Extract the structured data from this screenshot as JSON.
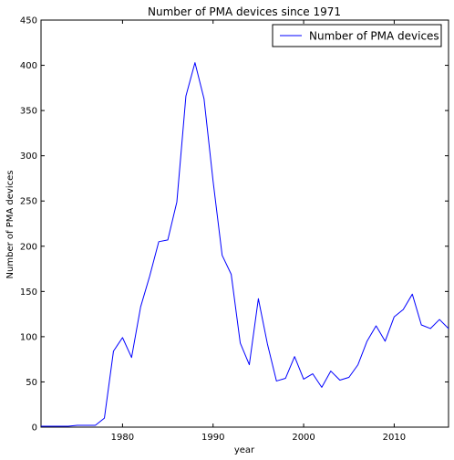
{
  "chart_data": {
    "type": "line",
    "title": "Number of PMA devices since 1971",
    "xlabel": "year",
    "ylabel": "Number of PMA devices",
    "xlim": [
      1971,
      2016
    ],
    "ylim": [
      0,
      450
    ],
    "xticks": [
      1980,
      1990,
      2000,
      2010
    ],
    "yticks": [
      0,
      50,
      100,
      150,
      200,
      250,
      300,
      350,
      400,
      450
    ],
    "grid": false,
    "legend_position": "top-right",
    "series": [
      {
        "name": "Number of PMA devices",
        "color": "#0000ff",
        "x": [
          1971,
          1972,
          1973,
          1974,
          1975,
          1976,
          1977,
          1978,
          1979,
          1980,
          1981,
          1982,
          1983,
          1984,
          1985,
          1986,
          1987,
          1988,
          1989,
          1990,
          1991,
          1992,
          1993,
          1994,
          1995,
          1996,
          1997,
          1998,
          1999,
          2000,
          2001,
          2002,
          2003,
          2004,
          2005,
          2006,
          2007,
          2008,
          2009,
          2010,
          2011,
          2012,
          2013,
          2014,
          2015,
          2016
        ],
        "y": [
          1,
          1,
          1,
          1,
          2,
          2,
          2,
          10,
          84,
          99,
          77,
          133,
          167,
          205,
          207,
          249,
          366,
          403,
          363,
          272,
          190,
          169,
          93,
          69,
          142,
          92,
          51,
          54,
          78,
          53,
          59,
          44,
          62,
          52,
          55,
          69,
          95,
          112,
          95,
          122,
          130,
          147,
          113,
          109,
          119,
          109
        ]
      }
    ]
  }
}
